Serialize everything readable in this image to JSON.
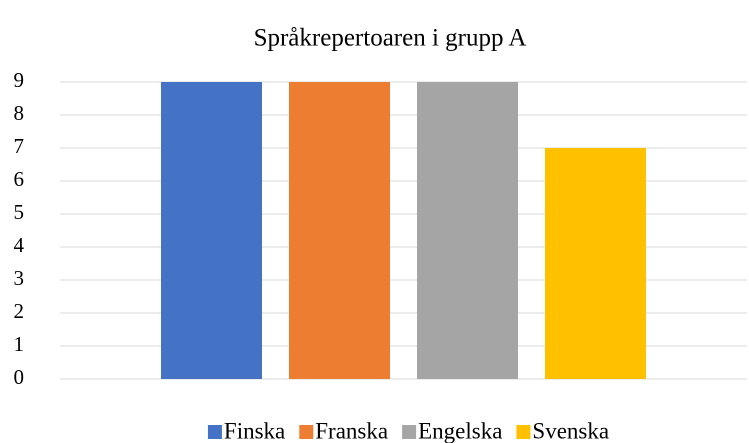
{
  "chart_data": {
    "type": "bar",
    "title": "Språkrepertoaren i grupp A",
    "categories": [
      null
    ],
    "series": [
      {
        "name": "Finska",
        "color": "#4472c4",
        "values": [
          9
        ]
      },
      {
        "name": "Franska",
        "color": "#ed7d31",
        "values": [
          9
        ]
      },
      {
        "name": "Engelska",
        "color": "#a5a5a5",
        "values": [
          9
        ]
      },
      {
        "name": "Svenska",
        "color": "#ffc000",
        "values": [
          7
        ]
      }
    ],
    "ylim": [
      0,
      9
    ],
    "yticks": [
      0,
      1,
      2,
      3,
      4,
      5,
      6,
      7,
      8,
      9
    ],
    "grid": true,
    "legend": "bottom"
  }
}
